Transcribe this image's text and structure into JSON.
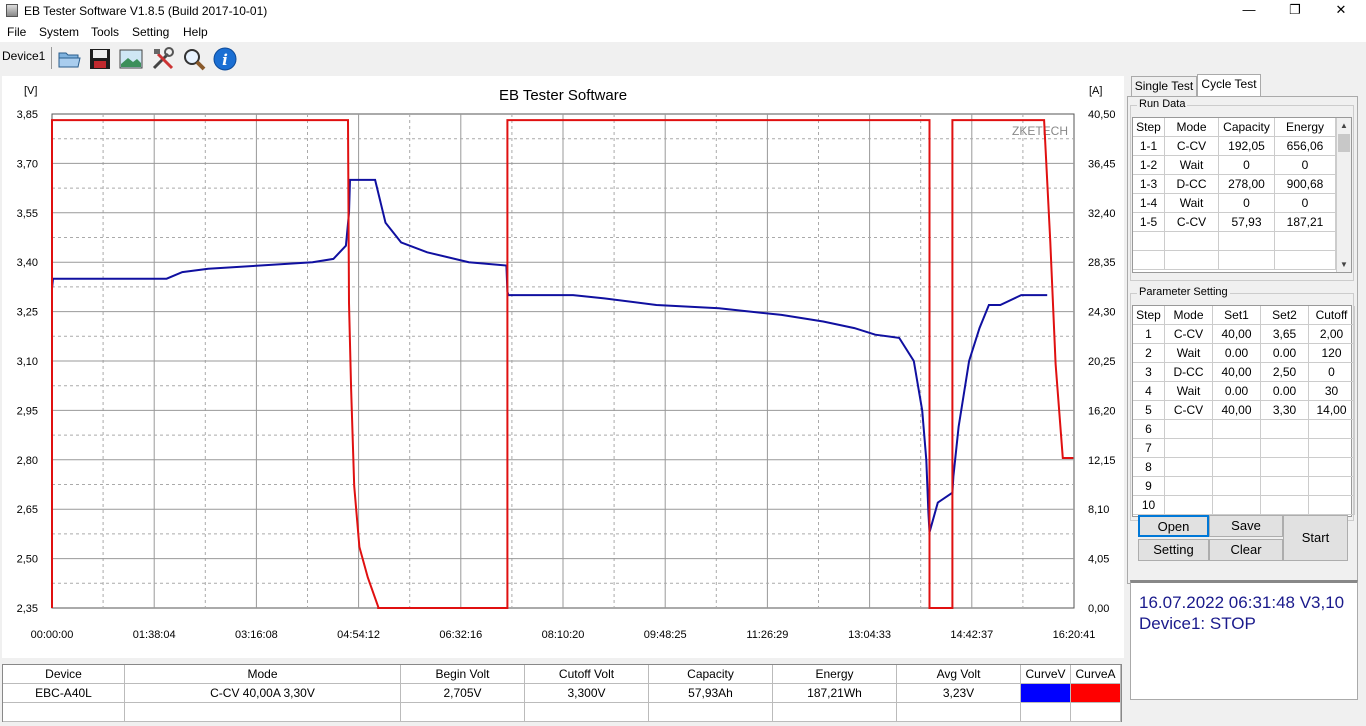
{
  "window": {
    "title": "EB Tester Software V1.8.5 (Build 2017-10-01)",
    "minimize": "—",
    "restore": "❐",
    "close": "✕"
  },
  "menu": [
    "File",
    "System",
    "Tools",
    "Setting",
    "Help"
  ],
  "toolbar": {
    "device_label": "Device1",
    "icons": [
      "open-folder-icon",
      "save-disk-icon",
      "picture-icon",
      "tools-icon",
      "magnifier-icon",
      "info-icon"
    ]
  },
  "chart": {
    "title": "EB Tester Software",
    "watermark": "ZKETECH",
    "left_unit": "[V]",
    "right_unit": "[A]"
  },
  "chart_data": {
    "type": "line",
    "title": "EB Tester Software",
    "xlabel": "",
    "ylabel_left": "[V]",
    "ylabel_right": "[A]",
    "x_ticks": [
      "00:00:00",
      "01:38:04",
      "03:16:08",
      "04:54:12",
      "06:32:16",
      "08:10:20",
      "09:48:25",
      "11:26:29",
      "13:04:33",
      "14:42:37",
      "16:20:41"
    ],
    "y_left_ticks": [
      "3,85",
      "3,70",
      "3,55",
      "3,40",
      "3,25",
      "3,10",
      "2,95",
      "2,80",
      "2,65",
      "2,50",
      "2,35"
    ],
    "y_right_ticks": [
      "40,50",
      "36,45",
      "32,40",
      "28,35",
      "24,30",
      "20,25",
      "16,20",
      "12,15",
      "8,10",
      "4,05",
      "0,00"
    ],
    "ylim_left": [
      2.35,
      3.85
    ],
    "ylim_right": [
      0,
      40.5
    ],
    "xlim_minutes": [
      0,
      980.7
    ],
    "grid": true,
    "series": [
      {
        "name": "CurveV",
        "color": "#1010a0",
        "axis": "left",
        "points": [
          [
            0,
            3.32
          ],
          [
            1,
            3.35
          ],
          [
            60,
            3.35
          ],
          [
            110,
            3.35
          ],
          [
            125,
            3.37
          ],
          [
            150,
            3.38
          ],
          [
            200,
            3.39
          ],
          [
            250,
            3.4
          ],
          [
            270,
            3.41
          ],
          [
            282,
            3.45
          ],
          [
            285,
            3.55
          ],
          [
            286,
            3.65
          ],
          [
            310,
            3.65
          ],
          [
            320,
            3.52
          ],
          [
            335,
            3.46
          ],
          [
            360,
            3.43
          ],
          [
            400,
            3.4
          ],
          [
            436,
            3.39
          ],
          [
            437,
            3.31
          ],
          [
            438,
            3.3
          ],
          [
            500,
            3.3
          ],
          [
            530,
            3.29
          ],
          [
            580,
            3.27
          ],
          [
            640,
            3.26
          ],
          [
            700,
            3.24
          ],
          [
            740,
            3.22
          ],
          [
            770,
            3.2
          ],
          [
            790,
            3.18
          ],
          [
            813,
            3.17
          ],
          [
            827,
            3.1
          ],
          [
            835,
            2.95
          ],
          [
            839,
            2.8
          ],
          [
            841,
            2.64
          ],
          [
            842,
            2.58
          ],
          [
            850,
            2.67
          ],
          [
            864,
            2.7
          ],
          [
            865,
            2.75
          ],
          [
            870,
            2.9
          ],
          [
            880,
            3.1
          ],
          [
            890,
            3.2
          ],
          [
            899,
            3.27
          ],
          [
            910,
            3.27
          ],
          [
            930,
            3.3
          ],
          [
            955,
            3.3
          ]
        ]
      },
      {
        "name": "CurveA",
        "color": "#e01010",
        "axis": "right",
        "points": [
          [
            0,
            0
          ],
          [
            0,
            40
          ],
          [
            284,
            40
          ],
          [
            285,
            25
          ],
          [
            287,
            18
          ],
          [
            290,
            10
          ],
          [
            295,
            5
          ],
          [
            303,
            2.5
          ],
          [
            313,
            0.1
          ],
          [
            313,
            0
          ],
          [
            437,
            0
          ],
          [
            437,
            40
          ],
          [
            842,
            40
          ],
          [
            842,
            0
          ],
          [
            864,
            0
          ],
          [
            864,
            40
          ],
          [
            952,
            40
          ],
          [
            958,
            30
          ],
          [
            963,
            20
          ],
          [
            970,
            12.3
          ],
          [
            980,
            12.3
          ]
        ]
      }
    ]
  },
  "bottom_table": {
    "headers": [
      "Device",
      "Mode",
      "Begin Volt",
      "Cutoff Volt",
      "Capacity",
      "Energy",
      "Avg Volt",
      "CurveV",
      "CurveA"
    ],
    "row": [
      "EBC-A40L",
      "C-CV  40,00A  3,30V",
      "2,705V",
      "3,300V",
      "57,93Ah",
      "187,21Wh",
      "3,23V",
      "",
      ""
    ],
    "curve_colors": [
      "#0000ff",
      "#ff0000"
    ]
  },
  "tabs": [
    "Single Test",
    "Cycle Test"
  ],
  "run_data": {
    "label": "Run Data",
    "headers": [
      "Step",
      "Mode",
      "Capacity",
      "Energy"
    ],
    "rows": [
      [
        "1-1",
        "C-CV",
        "192,05",
        "656,06"
      ],
      [
        "1-2",
        "Wait",
        "0",
        "0"
      ],
      [
        "1-3",
        "D-CC",
        "278,00",
        "900,68"
      ],
      [
        "1-4",
        "Wait",
        "0",
        "0"
      ],
      [
        "1-5",
        "C-CV",
        "57,93",
        "187,21"
      ]
    ]
  },
  "parameter_setting": {
    "label": "Parameter Setting",
    "headers": [
      "Step",
      "Mode",
      "Set1",
      "Set2",
      "Cutoff"
    ],
    "rows": [
      [
        "1",
        "C-CV",
        "40,00",
        "3,65",
        "2,00"
      ],
      [
        "2",
        "Wait",
        "0.00",
        "0.00",
        "120"
      ],
      [
        "3",
        "D-CC",
        "40,00",
        "2,50",
        "0"
      ],
      [
        "4",
        "Wait",
        "0.00",
        "0.00",
        "30"
      ],
      [
        "5",
        "C-CV",
        "40,00",
        "3,30",
        "14,00"
      ],
      [
        "6",
        "",
        "",
        "",
        ""
      ],
      [
        "7",
        "",
        "",
        "",
        ""
      ],
      [
        "8",
        "",
        "",
        "",
        ""
      ],
      [
        "9",
        "",
        "",
        "",
        ""
      ],
      [
        "10",
        "",
        "",
        "",
        ""
      ]
    ]
  },
  "buttons": {
    "open": "Open",
    "save": "Save",
    "setting": "Setting",
    "clear": "Clear",
    "start": "Start"
  },
  "status": {
    "line1": "16.07.2022 06:31:48  V3,10",
    "line2": "Device1: STOP"
  }
}
